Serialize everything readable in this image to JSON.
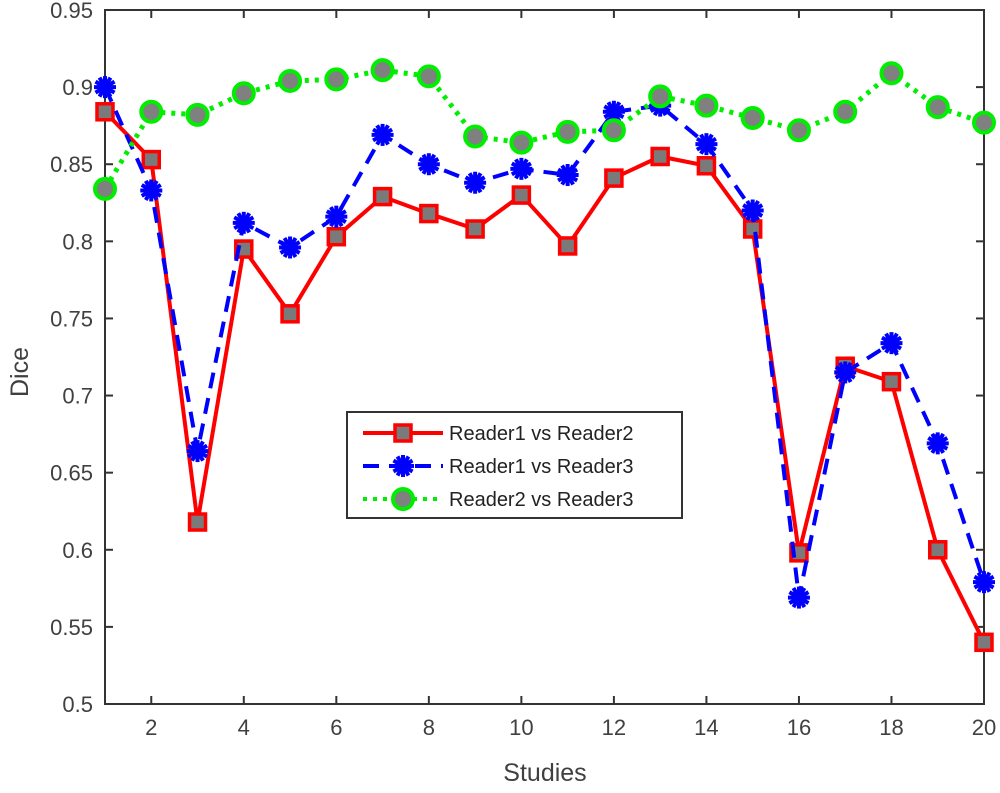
{
  "chart_data": {
    "type": "line",
    "title": "",
    "xlabel": "Studies",
    "ylabel": "Dice",
    "xlim": [
      1,
      20
    ],
    "ylim": [
      0.5,
      0.95
    ],
    "xticks": [
      2,
      4,
      6,
      8,
      10,
      12,
      14,
      16,
      18,
      20
    ],
    "xtick_labels": [
      "2",
      "4",
      "6",
      "8",
      "10",
      "12",
      "14",
      "16",
      "18",
      "20"
    ],
    "yticks": [
      0.5,
      0.55,
      0.6,
      0.65,
      0.7,
      0.75,
      0.8,
      0.85,
      0.9,
      0.95
    ],
    "ytick_labels": [
      "0.5",
      "0.55",
      "0.6",
      "0.65",
      "0.7",
      "0.75",
      "0.8",
      "0.85",
      "0.9",
      "0.95"
    ],
    "grid": false,
    "legend_position": "center",
    "x": [
      1,
      2,
      3,
      4,
      5,
      6,
      7,
      8,
      9,
      10,
      11,
      12,
      13,
      14,
      15,
      16,
      17,
      18,
      19,
      20
    ],
    "series": [
      {
        "name": "Reader1 vs Reader2",
        "color": "#ff0000",
        "line": "solid",
        "marker": "square",
        "values": [
          0.884,
          0.853,
          0.618,
          0.795,
          0.753,
          0.803,
          0.829,
          0.818,
          0.808,
          0.83,
          0.797,
          0.841,
          0.855,
          0.849,
          0.808,
          0.598,
          0.719,
          0.709,
          0.6,
          0.54
        ]
      },
      {
        "name": "Reader1 vs Reader3",
        "color": "#0000ff",
        "line": "dashed",
        "marker": "asterisk",
        "values": [
          0.9,
          0.833,
          0.664,
          0.812,
          0.796,
          0.816,
          0.869,
          0.85,
          0.838,
          0.847,
          0.843,
          0.884,
          0.888,
          0.863,
          0.82,
          0.569,
          0.715,
          0.734,
          0.669,
          0.579
        ]
      },
      {
        "name": "Reader2 vs Reader3",
        "color": "#00ee00",
        "line": "dotted",
        "marker": "circle",
        "values": [
          0.834,
          0.884,
          0.882,
          0.896,
          0.904,
          0.905,
          0.911,
          0.907,
          0.868,
          0.864,
          0.871,
          0.872,
          0.894,
          0.888,
          0.88,
          0.872,
          0.884,
          0.909,
          0.887,
          0.877
        ]
      }
    ]
  }
}
